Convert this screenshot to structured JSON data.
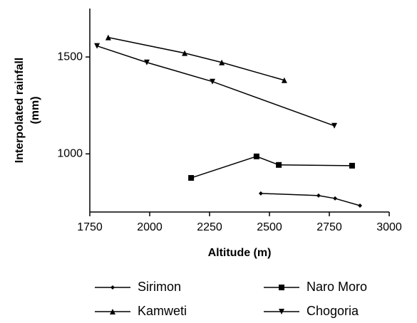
{
  "chart_data": {
    "type": "line",
    "x_label": "Altitude (m)",
    "y_label": [
      "Interpolated rainfall",
      "(mm)"
    ],
    "xlim": [
      1750,
      3000
    ],
    "xticks": [
      1750,
      2000,
      2250,
      2500,
      2750,
      3000
    ],
    "ylim": [
      700,
      1750
    ],
    "yticks": [
      1000,
      1500
    ],
    "series": [
      {
        "name": "Sirimon",
        "color": "#000000",
        "marker": "diamond",
        "x": [
          2464,
          2705,
          2774,
          2878
        ],
        "values": [
          796,
          785,
          770,
          733
        ]
      },
      {
        "name": "Naro Moro",
        "color": "#000000",
        "marker": "square",
        "x": [
          2173,
          2446,
          2539,
          2845
        ],
        "values": [
          876,
          987,
          943,
          939
        ]
      },
      {
        "name": "Kamweti",
        "color": "#000000",
        "marker": "triangle-up",
        "x": [
          1827,
          2146,
          2301,
          2562
        ],
        "values": [
          1601,
          1520,
          1472,
          1380
        ]
      },
      {
        "name": "Chogoria",
        "color": "#000000",
        "marker": "triangle-down",
        "x": [
          1780,
          1988,
          2262,
          2771
        ],
        "values": [
          1557,
          1472,
          1373,
          1145
        ]
      }
    ]
  }
}
